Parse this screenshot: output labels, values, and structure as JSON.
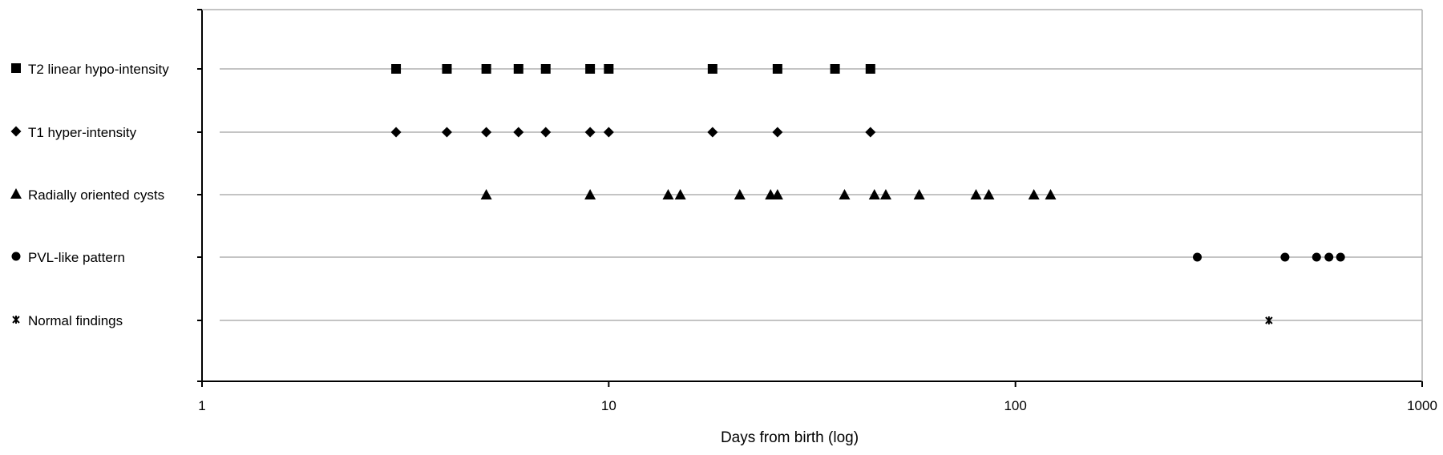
{
  "chart_data": {
    "type": "scatter",
    "xlabel": "Days from birth (log)",
    "ylabel": "",
    "xscale": "log",
    "xlim": [
      1,
      1000
    ],
    "x_ticks": [
      "1",
      "10",
      "100",
      "1000"
    ],
    "grid": "horizontal lines at each category",
    "legend": "none",
    "series": [
      {
        "name": "T2 linear hypo-intensity",
        "marker": "square",
        "x": [
          3,
          4,
          5,
          6,
          7,
          9,
          10,
          18,
          26,
          36,
          44
        ]
      },
      {
        "name": "T1 hyper-intensity",
        "marker": "diamond",
        "x": [
          3,
          4,
          5,
          6,
          7,
          9,
          10,
          18,
          26,
          44
        ]
      },
      {
        "name": "Radially oriented cysts",
        "marker": "triangle",
        "x": [
          5,
          9,
          14,
          15,
          21,
          25,
          26,
          38,
          45,
          48,
          58,
          80,
          86,
          111,
          122
        ]
      },
      {
        "name": "PVL-like pattern",
        "marker": "circle",
        "x": [
          280,
          460,
          550,
          590,
          630
        ]
      },
      {
        "name": "Normal findings",
        "marker": "star",
        "x": [
          420
        ]
      }
    ],
    "colors": {
      "marker": "#000000",
      "grid": "#b0b0b0",
      "axis": "#000000"
    }
  }
}
